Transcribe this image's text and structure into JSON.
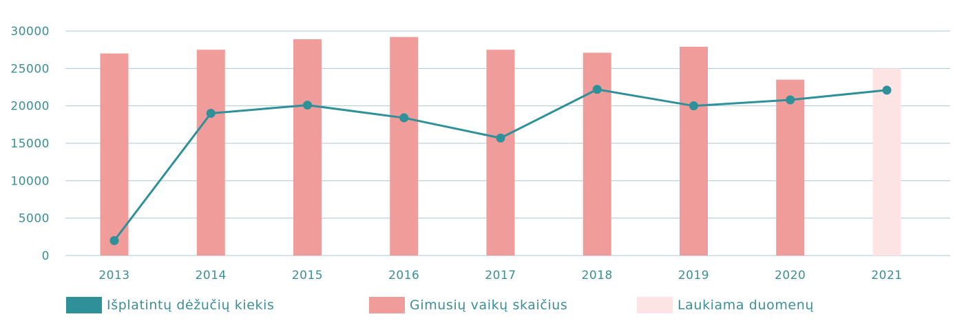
{
  "chart_data": {
    "type": "bar",
    "categories": [
      "2013",
      "2014",
      "2015",
      "2016",
      "2017",
      "2018",
      "2019",
      "2020",
      "2021"
    ],
    "ylim": [
      0,
      30000
    ],
    "yticks": [
      0,
      5000,
      10000,
      15000,
      20000,
      25000,
      30000
    ],
    "grid": true,
    "legend_position": "bottom",
    "series": [
      {
        "name": "Išplatintų dėžučių kiekis",
        "kind": "line",
        "color": "#2e9098",
        "values": [
          2000,
          19000,
          20100,
          18400,
          15700,
          22200,
          20000,
          20800,
          22100
        ]
      },
      {
        "name": "Gimusių vaikų skaičius",
        "kind": "bar",
        "color": "#ef9c9b",
        "values": [
          27000,
          27500,
          28900,
          29200,
          27500,
          27100,
          27900,
          23500,
          null
        ]
      },
      {
        "name": "Laukiama duomenų",
        "kind": "bar",
        "color": "#fce4e4",
        "values": [
          null,
          null,
          null,
          null,
          null,
          null,
          null,
          null,
          25000
        ]
      }
    ]
  },
  "colors": {
    "axis_text": "#3a8f96",
    "gridline": "#a9c9d2"
  }
}
